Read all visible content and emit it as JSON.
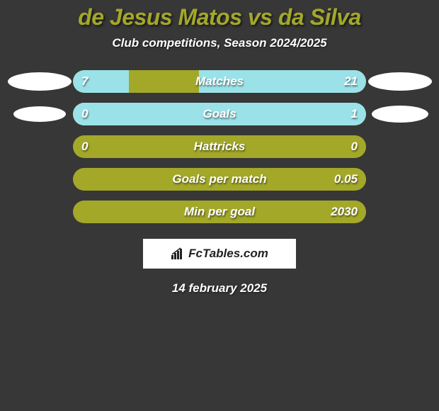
{
  "header": {
    "title": "de Jesus Matos vs da Silva",
    "title_fontsize": 32,
    "title_color": "#a3a829",
    "subtitle": "Club competitions, Season 2024/2025",
    "subtitle_fontsize": 17
  },
  "colors": {
    "background": "#373737",
    "track": "#a3a829",
    "fill": "#9be2e8",
    "avatar": "#ffffff",
    "text": "#ffffff"
  },
  "chart": {
    "type": "horizontal-comparison-bars",
    "players": {
      "left": "de Jesus Matos",
      "right": "da Silva"
    },
    "bars": [
      {
        "label": "Matches",
        "left_value": "7",
        "right_value": "21",
        "left_fill_pct": 19,
        "right_fill_pct": 57,
        "show_avatars": true,
        "avatar_left_w": 90,
        "avatar_left_h": 26,
        "avatar_right_w": 90,
        "avatar_right_h": 26
      },
      {
        "label": "Goals",
        "left_value": "0",
        "right_value": "1",
        "left_fill_pct": 17,
        "right_fill_pct": 100,
        "show_avatars": true,
        "avatar_left_w": 74,
        "avatar_left_h": 22,
        "avatar_right_w": 80,
        "avatar_right_h": 24
      },
      {
        "label": "Hattricks",
        "left_value": "0",
        "right_value": "0",
        "left_fill_pct": 0,
        "right_fill_pct": 0,
        "show_avatars": false
      },
      {
        "label": "Goals per match",
        "left_value": "",
        "right_value": "0.05",
        "left_fill_pct": 0,
        "right_fill_pct": 0,
        "show_avatars": false
      },
      {
        "label": "Min per goal",
        "left_value": "",
        "right_value": "2030",
        "left_fill_pct": 0,
        "right_fill_pct": 0,
        "show_avatars": false
      }
    ]
  },
  "footer": {
    "logo_text": "FcTables.com",
    "date": "14 february 2025"
  }
}
